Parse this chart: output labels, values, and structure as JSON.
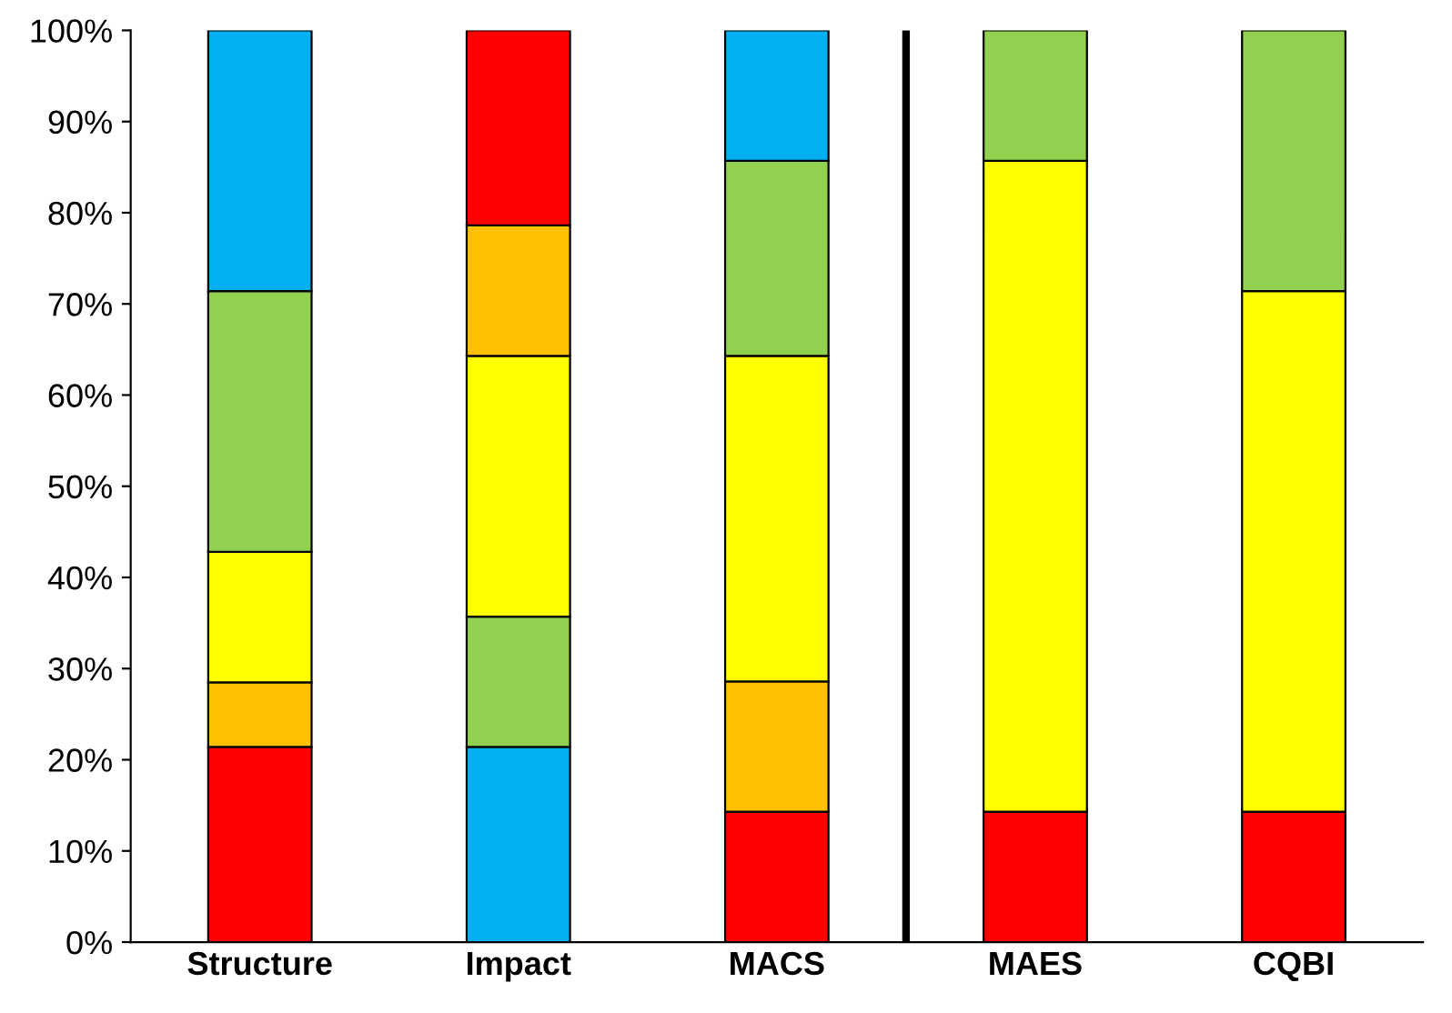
{
  "chart_data": {
    "type": "bar",
    "stacked": true,
    "categories": [
      "Structure",
      "Impact",
      "MACS",
      "MAES",
      "CQBI"
    ],
    "series": [
      {
        "colors": [
          "#ff0000",
          "#00b0f0",
          "#ff0000",
          "#ff0000",
          "#ff0000"
        ],
        "values": [
          21.4,
          21.4,
          14.3,
          14.3,
          14.3
        ]
      },
      {
        "colors": [
          "#ffc000",
          "#92d050",
          "#ffc000",
          "#ffff00",
          "#ffff00"
        ],
        "values": [
          7.1,
          14.3,
          14.3,
          71.4,
          57.1
        ]
      },
      {
        "colors": [
          "#ffff00",
          "#ffff00",
          "#ffff00",
          "#92d050",
          "#92d050"
        ],
        "values": [
          14.3,
          28.6,
          35.7,
          14.3,
          28.6
        ]
      },
      {
        "colors": [
          "#92d050",
          "#ffc000",
          "#92d050",
          null,
          null
        ],
        "values": [
          28.6,
          14.3,
          21.4,
          null,
          null
        ]
      },
      {
        "colors": [
          "#00b0f0",
          "#ff0000",
          "#00b0f0",
          null,
          null
        ],
        "values": [
          28.6,
          21.4,
          14.3,
          null,
          null
        ]
      }
    ],
    "ylim": [
      0,
      100
    ],
    "yticks": [
      {
        "value": 0,
        "label": "0%"
      },
      {
        "value": 10,
        "label": "10%"
      },
      {
        "value": 20,
        "label": "20%"
      },
      {
        "value": 30,
        "label": "30%"
      },
      {
        "value": 40,
        "label": "40%"
      },
      {
        "value": 50,
        "label": "50%"
      },
      {
        "value": 60,
        "label": "60%"
      },
      {
        "value": 70,
        "label": "70%"
      },
      {
        "value": 80,
        "label": "80%"
      },
      {
        "value": 90,
        "label": "90%"
      },
      {
        "value": 100,
        "label": "100%"
      }
    ],
    "grid": false
  }
}
